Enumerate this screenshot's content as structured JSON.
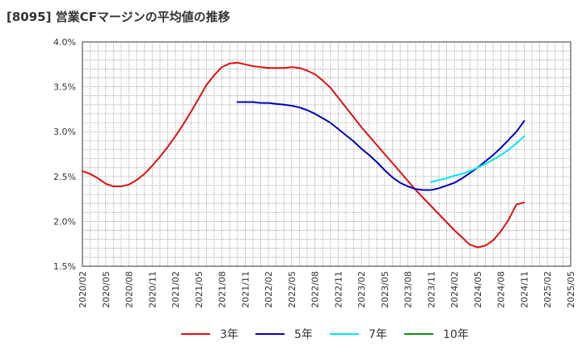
{
  "title": "[8095]  営業CFマージンの平均値の推移",
  "chart_data": {
    "type": "line",
    "ylim": [
      1.5,
      4.0
    ],
    "y_ticks": [
      1.5,
      2.0,
      2.5,
      3.0,
      3.5,
      4.0
    ],
    "y_tick_labels": [
      "1.5%",
      "2.0%",
      "2.5%",
      "3.0%",
      "3.5%",
      "4.0%"
    ],
    "x_tick_labels": [
      "2020/02",
      "2020/05",
      "2020/08",
      "2020/11",
      "2021/02",
      "2021/05",
      "2021/08",
      "2021/11",
      "2022/02",
      "2022/05",
      "2022/08",
      "2022/11",
      "2023/02",
      "2023/05",
      "2023/08",
      "2023/11",
      "2024/02",
      "2024/05",
      "2024/08",
      "2024/11",
      "2025/02",
      "2025/05"
    ],
    "x_range": [
      "2020/02",
      "2025/05"
    ],
    "grid": true,
    "legend_position": "bottom",
    "series": [
      {
        "name": "3年",
        "color": "#dd1111",
        "x": [
          "2020/02",
          "2020/03",
          "2020/04",
          "2020/05",
          "2020/06",
          "2020/07",
          "2020/08",
          "2020/09",
          "2020/10",
          "2020/11",
          "2020/12",
          "2021/01",
          "2021/02",
          "2021/03",
          "2021/04",
          "2021/05",
          "2021/06",
          "2021/07",
          "2021/08",
          "2021/09",
          "2021/10",
          "2021/11",
          "2021/12",
          "2022/01",
          "2022/02",
          "2022/03",
          "2022/04",
          "2022/05",
          "2022/06",
          "2022/07",
          "2022/08",
          "2022/09",
          "2022/10",
          "2022/11",
          "2022/12",
          "2023/01",
          "2023/02",
          "2023/03",
          "2023/04",
          "2023/05",
          "2023/06",
          "2023/07",
          "2023/08",
          "2023/09",
          "2023/10",
          "2023/11",
          "2023/12",
          "2024/01",
          "2024/02",
          "2024/03",
          "2024/04",
          "2024/05",
          "2024/06",
          "2024/07",
          "2024/08",
          "2024/09",
          "2024/10",
          "2024/11"
        ],
        "values": [
          2.56,
          2.53,
          2.48,
          2.42,
          2.39,
          2.39,
          2.41,
          2.46,
          2.53,
          2.62,
          2.72,
          2.83,
          2.95,
          3.08,
          3.22,
          3.37,
          3.52,
          3.63,
          3.72,
          3.76,
          3.77,
          3.75,
          3.73,
          3.72,
          3.71,
          3.71,
          3.71,
          3.72,
          3.71,
          3.68,
          3.64,
          3.57,
          3.49,
          3.38,
          3.27,
          3.16,
          3.05,
          2.95,
          2.85,
          2.75,
          2.65,
          2.55,
          2.45,
          2.35,
          2.26,
          2.17,
          2.08,
          1.99,
          1.9,
          1.82,
          1.74,
          1.71,
          1.73,
          1.79,
          1.89,
          2.02,
          2.19,
          2.21
        ]
      },
      {
        "name": "5年",
        "color": "#0000bb",
        "x": [
          "2021/10",
          "2021/11",
          "2021/12",
          "2022/01",
          "2022/02",
          "2022/03",
          "2022/04",
          "2022/05",
          "2022/06",
          "2022/07",
          "2022/08",
          "2022/09",
          "2022/10",
          "2022/11",
          "2022/12",
          "2023/01",
          "2023/02",
          "2023/03",
          "2023/04",
          "2023/05",
          "2023/06",
          "2023/07",
          "2023/08",
          "2023/09",
          "2023/10",
          "2023/11",
          "2023/12",
          "2024/01",
          "2024/02",
          "2024/03",
          "2024/04",
          "2024/05",
          "2024/06",
          "2024/07",
          "2024/08",
          "2024/09",
          "2024/10",
          "2024/11"
        ],
        "values": [
          3.33,
          3.33,
          3.33,
          3.32,
          3.32,
          3.31,
          3.3,
          3.29,
          3.27,
          3.24,
          3.2,
          3.15,
          3.1,
          3.03,
          2.96,
          2.89,
          2.81,
          2.74,
          2.66,
          2.57,
          2.49,
          2.43,
          2.39,
          2.36,
          2.35,
          2.35,
          2.37,
          2.4,
          2.43,
          2.48,
          2.54,
          2.6,
          2.67,
          2.74,
          2.82,
          2.91,
          3.0,
          3.12
        ]
      },
      {
        "name": "7年",
        "color": "#00e5ee",
        "x": [
          "2023/11",
          "2023/12",
          "2024/01",
          "2024/02",
          "2024/03",
          "2024/04",
          "2024/05",
          "2024/06",
          "2024/07",
          "2024/08",
          "2024/09",
          "2024/10",
          "2024/11"
        ],
        "values": [
          2.44,
          2.46,
          2.48,
          2.51,
          2.53,
          2.56,
          2.6,
          2.64,
          2.69,
          2.74,
          2.8,
          2.87,
          2.95
        ]
      },
      {
        "name": "10年",
        "color": "#118811",
        "x": [],
        "values": []
      }
    ]
  }
}
